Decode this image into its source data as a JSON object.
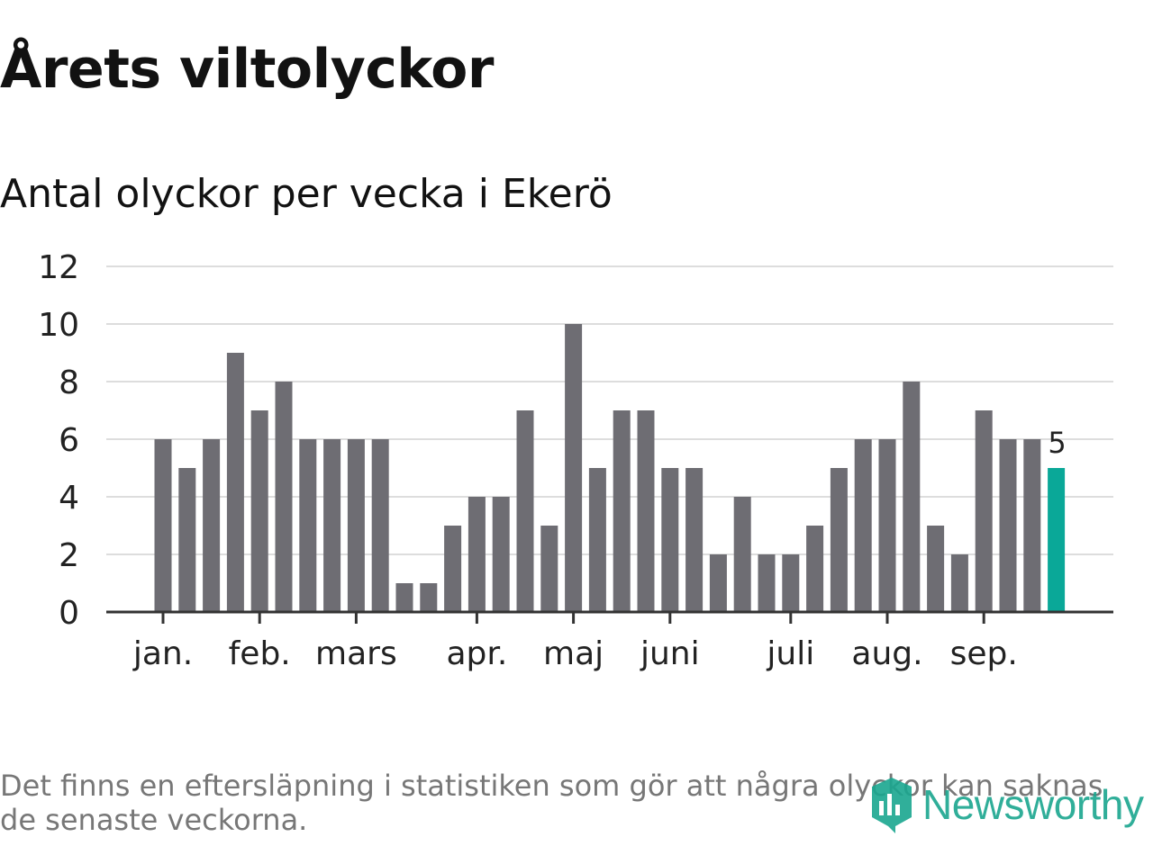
{
  "title": "Årets viltolyckor",
  "subtitle": "Antal olyckor per vecka i Ekerö",
  "footnote": "Det finns en eftersläpning i statistiken som gör att några olyckor kan saknas de senaste veckorna.",
  "logo_text": "Newsworthy",
  "colors": {
    "bar": "#6e6d73",
    "highlight": "#0aa898",
    "grid": "#dddddd",
    "axis": "#333333"
  },
  "chart_data": {
    "type": "bar",
    "title": "Antal olyckor per vecka i Ekerö",
    "xlabel": "",
    "ylabel": "",
    "ylim": [
      0,
      12
    ],
    "yticks": [
      0,
      2,
      4,
      6,
      8,
      10,
      12
    ],
    "grid": true,
    "month_labels": [
      "jan.",
      "feb.",
      "mars",
      "apr.",
      "maj",
      "juni",
      "juli",
      "aug.",
      "sep."
    ],
    "month_tick_weeks": [
      1,
      5,
      9,
      14,
      18,
      22,
      27,
      31,
      35
    ],
    "weeks": [
      1,
      2,
      3,
      4,
      5,
      6,
      7,
      8,
      9,
      10,
      11,
      12,
      13,
      14,
      15,
      16,
      17,
      18,
      19,
      20,
      21,
      22,
      23,
      24,
      25,
      26,
      27,
      28,
      29,
      30,
      31,
      32,
      33,
      34,
      35,
      36,
      37,
      38
    ],
    "values": [
      6,
      5,
      6,
      9,
      7,
      8,
      6,
      6,
      6,
      6,
      1,
      1,
      3,
      4,
      4,
      7,
      3,
      10,
      5,
      7,
      7,
      5,
      5,
      2,
      4,
      2,
      2,
      3,
      5,
      6,
      6,
      8,
      3,
      2,
      7,
      6,
      6,
      5
    ],
    "highlight_label": "5"
  }
}
